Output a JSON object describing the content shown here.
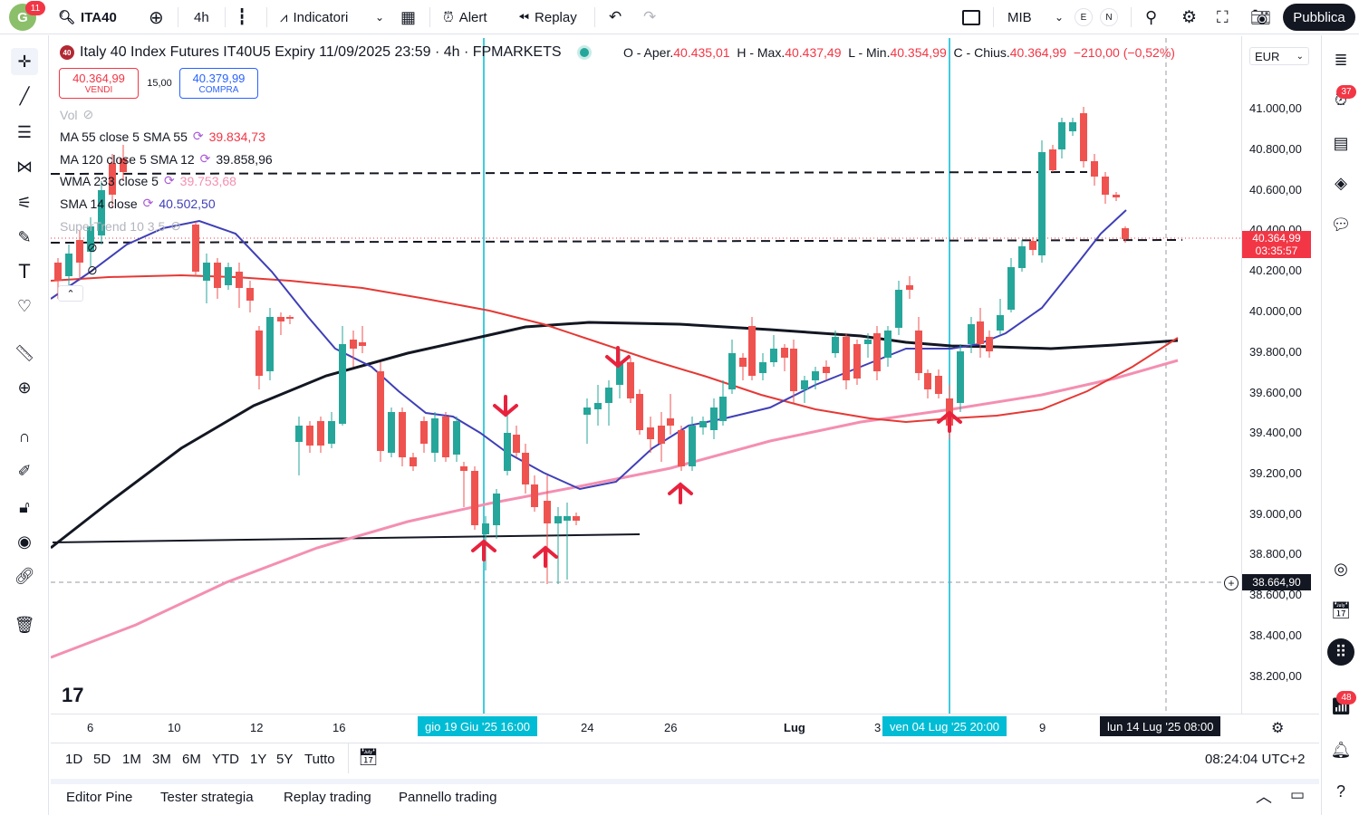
{
  "topbar": {
    "avatar_letter": "G",
    "avatar_badge": "11",
    "symbol": "ITA40",
    "interval": "4h",
    "indicators_label": "Indicatori",
    "alert_label": "Alert",
    "replay_label": "Replay",
    "layout_name": "MIB",
    "badge_e": "E",
    "badge_n": "N",
    "publish_label": "Pubblica"
  },
  "legend": {
    "symbol_badge": "40",
    "title": "Italy 40 Index Futures IT40U5 Expiry 11/09/2025 23:59 · 4h · FPMARKETS",
    "ohlc": {
      "o_label": "O - Aper.",
      "o_value": "40.435,01",
      "h_label": "H - Max.",
      "h_value": "40.437,49",
      "l_label": "L - Min.",
      "l_value": "40.354,99",
      "c_label": "C - Chius.",
      "c_value": "40.364,99",
      "change": "−210,00 (−0,52%)"
    },
    "sell_price": "40.364,99",
    "sell_label": "VENDI",
    "spread": "15,00",
    "buy_price": "40.379,99",
    "buy_label": "COMPRA"
  },
  "indicators": [
    {
      "name": "Vol",
      "value": "",
      "color": "#b2b5be"
    },
    {
      "name": "MA 55 close 5 SMA 55",
      "value": "39.834,73",
      "color": "#f23645"
    },
    {
      "name": "MA 120 close 5 SMA 12",
      "value": "39.858,96",
      "color": "#131722"
    },
    {
      "name": "WMA 233 close 5",
      "value": "39.753,68",
      "color": "#f48fb1"
    },
    {
      "name": "SMA 14 close",
      "value": "40.502,50",
      "color": "#3f3fb8"
    },
    {
      "name": "SuperTrend 10 3,5",
      "value": "",
      "color": "#b2b5be"
    }
  ],
  "currency": "EUR",
  "price_axis": [
    "41.000,00",
    "40.800,00",
    "40.600,00",
    "40.400,00",
    "40.200,00",
    "40.000,00",
    "39.800,00",
    "39.600,00",
    "39.400,00",
    "39.200,00",
    "39.000,00",
    "38.800,00",
    "38.600,00",
    "38.400,00",
    "38.200,00"
  ],
  "current_price": {
    "value": "40.364,99",
    "countdown": "03:35:57",
    "color": "#f23645"
  },
  "crosshair_price": "38.664,90",
  "time_axis": {
    "labels": [
      "6",
      "10",
      "12",
      "16",
      "24",
      "26",
      "Lug",
      "3",
      "9"
    ],
    "highlight_1": "gio 19 Giu '25   16:00",
    "highlight_2": "ven 04 Lug '25   20:00",
    "highlight_3": "lun 14 Lug '25   08:00"
  },
  "right_badges": {
    "alerts": "37",
    "notifications": "48"
  },
  "ranges": [
    "1D",
    "5D",
    "1M",
    "3M",
    "6M",
    "YTD",
    "1Y",
    "5Y",
    "Tutto"
  ],
  "clock": "08:24:04 UTC+2",
  "bottom_tabs": [
    "Editor Pine",
    "Tester strategia",
    "Replay trading",
    "Pannello trading"
  ],
  "colors": {
    "up": "#26a69a",
    "down": "#ef5350",
    "accent": "#2962ff",
    "vline": "#00bcd4"
  }
}
